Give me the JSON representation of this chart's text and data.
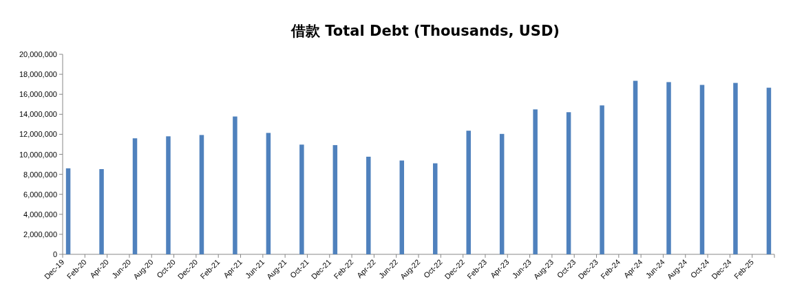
{
  "chart_data": {
    "type": "bar",
    "title": "借款 Total Debt (Thousands, USD)",
    "categories": [
      "Dec-19",
      null,
      "Feb-20",
      null,
      "Apr-20",
      null,
      "Jun-20",
      null,
      "Aug-20",
      null,
      "Oct-20",
      null,
      "Dec-20",
      null,
      "Feb-21",
      null,
      "Apr-21",
      null,
      "Jun-21",
      null,
      "Aug-21",
      null,
      "Oct-21",
      null,
      "Dec-21",
      null,
      "Feb-22",
      null,
      "Apr-22",
      null,
      "Jun-22",
      null,
      "Aug-22",
      null,
      "Oct-22",
      null,
      "Dec-22",
      null,
      "Feb-23",
      null,
      "Apr-23",
      null,
      "Jun-23",
      null,
      "Aug-23",
      null,
      "Oct-23",
      null,
      "Dec-23",
      null,
      "Feb-24",
      null,
      "Apr-24",
      null,
      "Jun-24",
      null,
      "Aug-24",
      null,
      "Oct-24",
      null,
      "Dec-24",
      null,
      "Feb-25",
      null
    ],
    "values": [
      8600000,
      null,
      null,
      8520000,
      null,
      null,
      11600000,
      null,
      null,
      11800000,
      null,
      null,
      11930000,
      null,
      null,
      13780000,
      null,
      null,
      12140000,
      null,
      null,
      10970000,
      null,
      null,
      10920000,
      null,
      null,
      9760000,
      null,
      null,
      9380000,
      null,
      null,
      9100000,
      null,
      null,
      12360000,
      null,
      null,
      12040000,
      null,
      null,
      14490000,
      null,
      null,
      14210000,
      null,
      null,
      14890000,
      null,
      null,
      17350000,
      null,
      null,
      17220000,
      null,
      null,
      16940000,
      null,
      null,
      17140000,
      null,
      null,
      16660000
    ],
    "color": "#4f81bd",
    "ylim": [
      0,
      20000000
    ],
    "yticks": [
      0,
      {
        "value": 2000000,
        "label": "2,000,000"
      },
      {
        "value": 4000000,
        "label": "4,000,000"
      },
      {
        "value": 6000000,
        "label": "6,000,000"
      },
      {
        "value": 8000000,
        "label": "8,000,000"
      },
      {
        "value": 10000000,
        "label": "10,000,000"
      },
      {
        "value": 12000000,
        "label": "12,000,000"
      },
      {
        "value": 14000000,
        "label": "14,000,000"
      },
      {
        "value": 16000000,
        "label": "16,000,000"
      },
      {
        "value": 18000000,
        "label": "18,000,000"
      },
      {
        "value": 20000000,
        "label": "20,000,000"
      }
    ]
  }
}
